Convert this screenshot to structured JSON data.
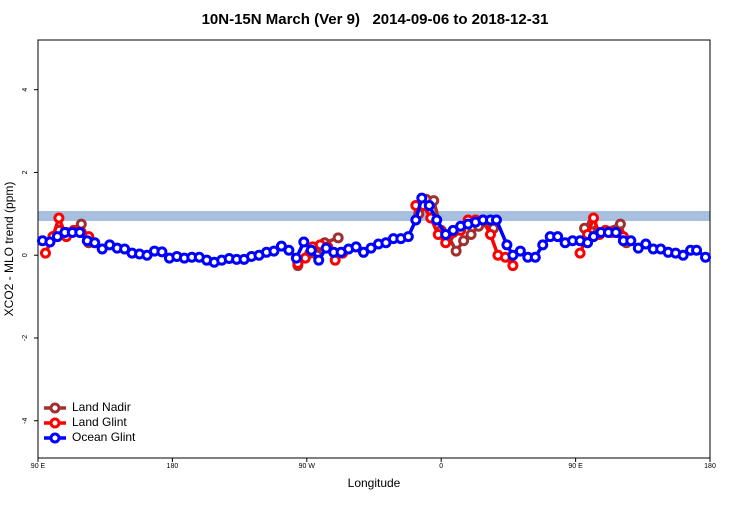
{
  "chart_data": {
    "type": "line",
    "title": "10N-15N March (Ver 9)   2014-09-06 to 2018-12-31",
    "x_label": "Longitude",
    "y_label": "XCO2 - MLO trend (ppm)",
    "xlim": [
      -270,
      180
    ],
    "xticks": [
      {
        "value": -270,
        "label": "90 E"
      },
      {
        "value": -180,
        "label": "180"
      },
      {
        "value": -90,
        "label": "90 W"
      },
      0,
      {
        "value": 90,
        "label": "90 E"
      },
      {
        "value": 180,
        "label": "180"
      }
    ],
    "ylim": [
      -4.9,
      5.2
    ],
    "yticks": [
      -4,
      -2,
      0,
      2,
      4
    ],
    "legend": "bottom-left",
    "series": [
      {
        "name": "Land Nadir",
        "color": "#a03030",
        "x": [
          -260,
          -256,
          -251,
          -241,
          -236,
          null,
          -96,
          -88,
          -83,
          -78,
          -69,
          null,
          -15,
          -10,
          -5,
          0,
          5,
          10,
          15,
          20,
          25,
          30,
          35,
          null,
          96,
          101,
          105,
          120,
          124
        ],
        "values": [
          0.45,
          0.6,
          0.55,
          0.75,
          0.3,
          null,
          -0.25,
          0.05,
          0.0,
          0.3,
          0.42,
          null,
          1.0,
          1.35,
          1.32,
          0.6,
          0.45,
          0.1,
          0.35,
          0.5,
          0.7,
          0.8,
          0.65,
          null,
          0.65,
          0.75,
          0.55,
          0.75,
          0.3
        ]
      },
      {
        "name": "Land Glint",
        "color": "#ff0000",
        "x": [
          -265,
          -260,
          -256,
          -251,
          -246,
          -241,
          -236,
          null,
          -96,
          -91,
          -86,
          -81,
          -76,
          -71,
          -66,
          null,
          -17,
          -12,
          -7,
          -2,
          3,
          8,
          13,
          18,
          23,
          28,
          33,
          38,
          43,
          48,
          null,
          93,
          98,
          102,
          106,
          110,
          114,
          118,
          122
        ],
        "values": [
          0.05,
          0.45,
          0.9,
          0.45,
          0.6,
          0.55,
          0.45,
          null,
          -0.2,
          -0.07,
          0.2,
          0.25,
          0.2,
          -0.12,
          0.05,
          null,
          1.2,
          1.2,
          0.9,
          0.5,
          0.3,
          0.55,
          0.6,
          0.85,
          0.85,
          0.85,
          0.5,
          0.0,
          -0.05,
          -0.25,
          null,
          0.05,
          0.5,
          0.9,
          0.5,
          0.6,
          0.55,
          0.55,
          0.45
        ]
      },
      {
        "name": "Ocean Glint",
        "color": "#0000ff",
        "x": [
          -267,
          -262,
          -257,
          -252,
          -247,
          -242,
          -237,
          -232,
          -227,
          -222,
          -217,
          -212,
          -207,
          -202,
          -197,
          -192,
          -187,
          -182,
          -177,
          -172,
          -167,
          -162,
          -157,
          -152,
          -147,
          -142,
          -137,
          -132,
          -127,
          -122,
          -117,
          -112,
          -107,
          -102,
          -97,
          -92,
          -87,
          -82,
          -77,
          -72,
          -67,
          -62,
          -57,
          -52,
          -47,
          -42,
          -37,
          -32,
          -27,
          -22,
          -17,
          -13,
          -8,
          -3,
          3,
          8,
          13,
          18,
          23,
          28,
          33,
          37,
          44,
          48,
          53,
          58,
          63,
          68,
          73,
          78,
          83,
          88,
          93,
          98,
          102,
          107,
          112,
          117,
          122,
          127,
          132,
          137,
          142,
          147,
          152,
          157,
          162,
          167,
          171,
          177
        ],
        "values": [
          0.35,
          0.32,
          0.45,
          0.55,
          0.55,
          0.55,
          0.35,
          0.3,
          0.15,
          0.25,
          0.17,
          0.15,
          0.05,
          0.03,
          0.0,
          0.1,
          0.08,
          -0.07,
          -0.03,
          -0.07,
          -0.05,
          -0.05,
          -0.12,
          -0.17,
          -0.12,
          -0.08,
          -0.1,
          -0.1,
          -0.03,
          0.0,
          0.07,
          0.1,
          0.22,
          0.12,
          -0.07,
          0.32,
          0.12,
          -0.12,
          0.17,
          0.07,
          0.07,
          0.15,
          0.2,
          0.07,
          0.17,
          0.27,
          0.3,
          0.4,
          0.4,
          0.45,
          0.85,
          1.38,
          1.2,
          0.85,
          0.5,
          0.6,
          0.7,
          0.75,
          0.8,
          0.85,
          0.85,
          0.85,
          0.25,
          0.0,
          0.1,
          -0.05,
          -0.05,
          0.25,
          0.45,
          0.45,
          0.3,
          0.35,
          0.35,
          0.3,
          0.45,
          0.55,
          0.55,
          0.55,
          0.35,
          0.35,
          0.17,
          0.27,
          0.15,
          0.15,
          0.07,
          0.05,
          0.0,
          0.12,
          0.12,
          -0.05
        ]
      }
    ]
  }
}
